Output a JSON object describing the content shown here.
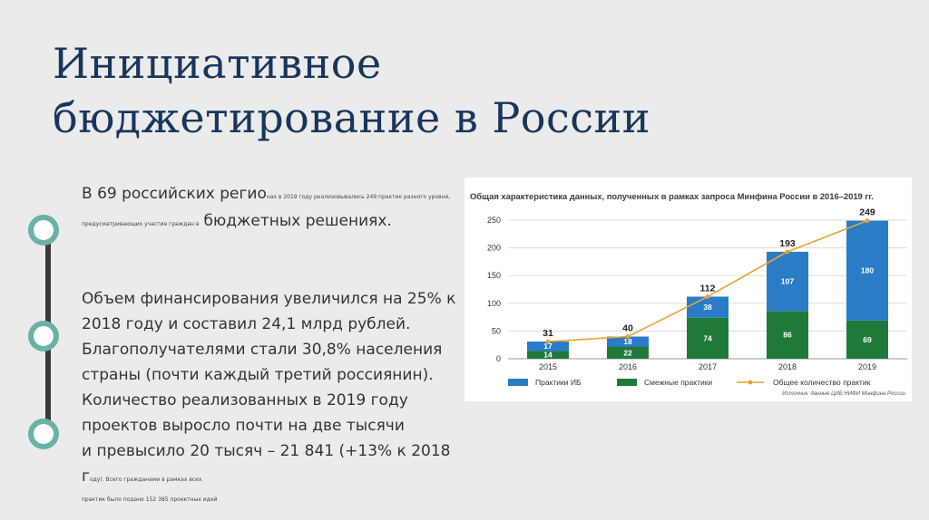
{
  "slide": {
    "title_line1": "Инициативное",
    "title_line2": "бюджетирование в России"
  },
  "paragraph1": {
    "lead": "В 69 российских регио",
    "small1": "нах в 2019 году реализовывались 249 практик разного уровня,",
    "small2": "предусматривающих участие граждан в",
    "tail": "бюджетных решениях."
  },
  "paragraph2": {
    "line1": "Объем финансирования увеличился на 25% к",
    "line2": "2018 году и составил 24,1 млрд рублей.",
    "line3": "Благополучателями стали 30,8% населения",
    "line4": "страны (почти каждый третий россиянин).",
    "line5": "Количество реализованных в 2019 году",
    "line6": "проектов выросло почти на две тысячи",
    "line7": "и превысило 20 тысяч – 21 841 (+13% к 2018",
    "line8_big": "г",
    "line8_small": "оду). Всего гражданами в рамках всех",
    "line9": "практик было подано 152 385 проектных идей"
  },
  "chart_data": {
    "type": "bar",
    "title": "Общая характеристика данных, полученных в рамках запроса Минфина России в 2016–2019 гг.",
    "categories": [
      "2015",
      "2016",
      "2017",
      "2018",
      "2019"
    ],
    "ylim": [
      0,
      250
    ],
    "yticks": [
      0,
      50,
      100,
      150,
      200,
      250
    ],
    "grid": true,
    "series": [
      {
        "name": "Смежные практики",
        "values": [
          14,
          22,
          74,
          86,
          69
        ],
        "color": "#1f7a3a"
      },
      {
        "name": "Практики ИБ",
        "values": [
          17,
          18,
          38,
          107,
          180
        ],
        "color": "#2a7cc7"
      }
    ],
    "line": {
      "name": "Общее количество практик",
      "values": [
        31,
        40,
        112,
        193,
        249
      ],
      "color": "#f0a030"
    },
    "legend_position": "bottom",
    "source": "Источник: данные ЦИБ НИФИ Минфина России"
  }
}
